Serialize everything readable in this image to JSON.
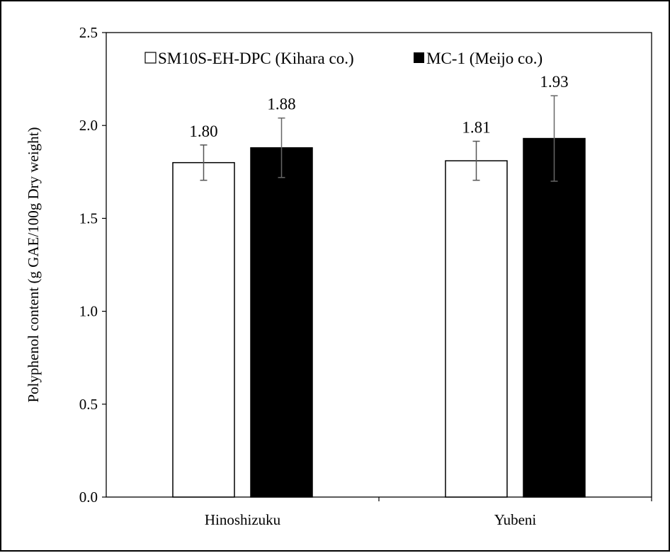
{
  "chart_data": {
    "type": "bar",
    "title": "",
    "xlabel": "",
    "ylabel": "Polyphenol content  (g GAE/100g Dry weight)",
    "ylim": [
      0,
      2.5
    ],
    "yticks": [
      "0.0",
      "0.5",
      "1.0",
      "1.5",
      "2.0",
      "2.5"
    ],
    "grid": false,
    "legend_position": "top",
    "categories": [
      "Hinoshizuku",
      "Yubeni"
    ],
    "series": [
      {
        "name": "SM10S-EH-DPC (Kihara co.)",
        "color": "#ffffff",
        "values": [
          1.8,
          1.81
        ],
        "labels": [
          "1.80",
          "1.81"
        ],
        "errors": [
          0.095,
          0.105
        ]
      },
      {
        "name": "MC-1 (Meijo co.)",
        "color": "#000000",
        "values": [
          1.88,
          1.93
        ],
        "labels": [
          "1.88",
          "1.93"
        ],
        "errors": [
          0.16,
          0.23
        ]
      }
    ]
  }
}
